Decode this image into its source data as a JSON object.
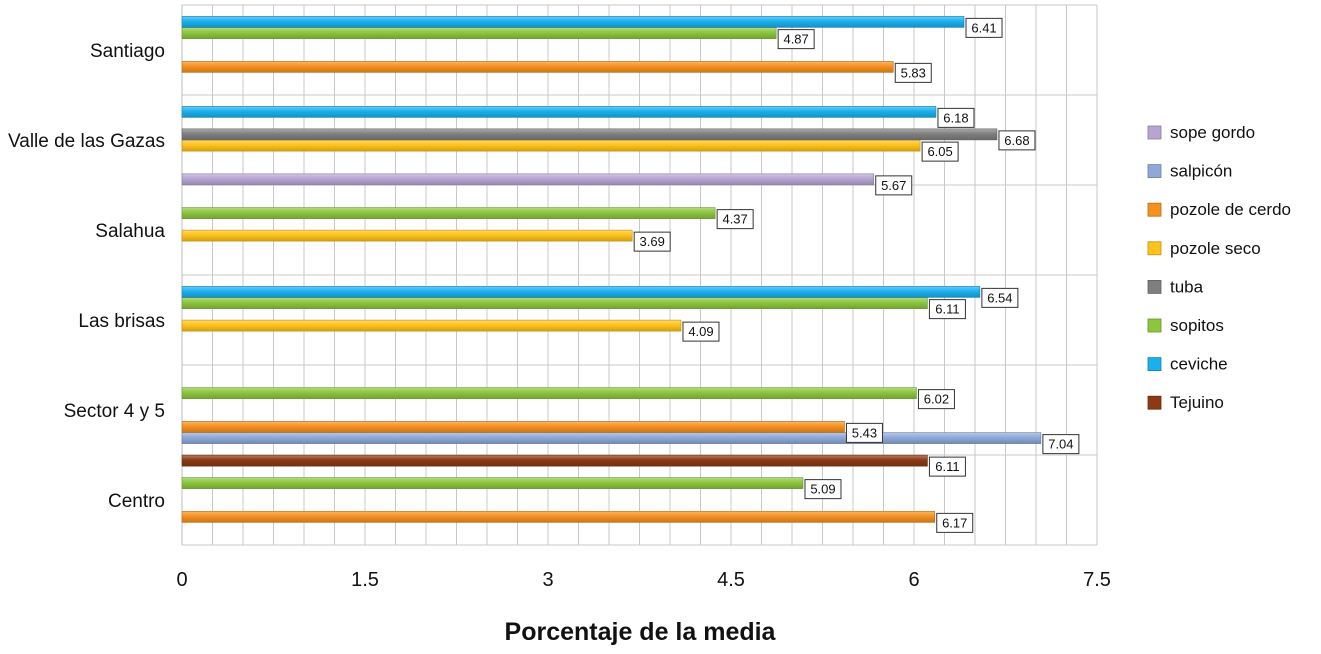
{
  "chart_data": {
    "type": "bar",
    "orientation": "horizontal",
    "title": "",
    "xlabel": "Porcentaje  de la media",
    "ylabel": "",
    "xlim": [
      0,
      7.5
    ],
    "xticks": [
      "0",
      "1.5",
      "3",
      "4.5",
      "6",
      "7.5"
    ],
    "grid": true,
    "legend_position": "right",
    "categories": [
      "Centro",
      "Sector 4 y 5",
      "Las brisas",
      "Salahua",
      "Valle de las  Gazas",
      "Santiago"
    ],
    "series": [
      {
        "name": "sope gordo",
        "color": "#b7a4d3",
        "values": [
          null,
          null,
          null,
          null,
          5.67,
          null
        ]
      },
      {
        "name": "salpicón",
        "color": "#8ea9d8",
        "values": [
          null,
          7.04,
          null,
          null,
          null,
          null
        ]
      },
      {
        "name": "pozole de cerdo",
        "color": "#f5901f",
        "values": [
          6.17,
          5.43,
          null,
          null,
          null,
          5.83
        ]
      },
      {
        "name": "pozole seco",
        "color": "#ffc21a",
        "values": [
          null,
          null,
          4.09,
          3.69,
          6.05,
          null
        ]
      },
      {
        "name": "tuba",
        "color": "#7f7f7f",
        "values": [
          null,
          null,
          null,
          null,
          6.68,
          null
        ]
      },
      {
        "name": "sopitos",
        "color": "#8cc63e",
        "values": [
          5.09,
          6.02,
          6.11,
          4.37,
          null,
          4.87
        ]
      },
      {
        "name": "ceviche",
        "color": "#1ab0ee",
        "values": [
          null,
          null,
          6.54,
          null,
          6.18,
          6.41
        ]
      },
      {
        "name": "Tejuino",
        "color": "#8b3a14",
        "values": [
          6.11,
          null,
          null,
          null,
          null,
          null
        ]
      }
    ]
  }
}
